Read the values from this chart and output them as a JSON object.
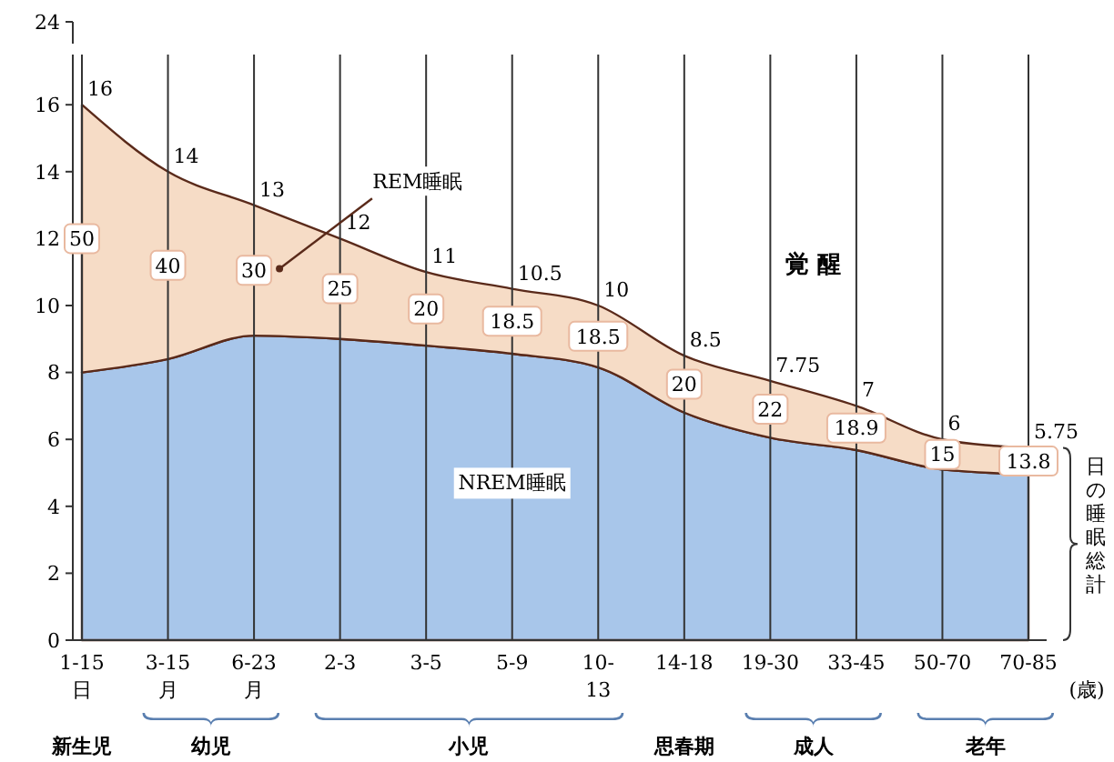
{
  "chart_data": {
    "type": "area",
    "stacked": true,
    "categories": [
      "1-15\n日",
      "3-15\n月",
      "6-23\n月",
      "2-3",
      "3-5",
      "5-9",
      "10-\n13",
      "14-18",
      "19-30",
      "33-45",
      "50-70",
      "70-85"
    ],
    "series": [
      {
        "name": "NREM睡眠",
        "color": "#a8c6ea",
        "values": [
          8,
          8.4,
          9.1,
          9,
          8.8,
          8.56,
          8.15,
          6.8,
          6.05,
          5.68,
          5.1,
          4.96
        ]
      },
      {
        "name": "REM睡眠",
        "color": "#f6dcc6",
        "values": [
          8,
          5.6,
          3.9,
          3,
          2.2,
          1.94,
          1.85,
          1.7,
          1.7,
          1.32,
          0.9,
          0.79
        ]
      }
    ],
    "totals": [
      "16",
      "14",
      "13",
      "12",
      "11",
      "10.5",
      "10",
      "8.5",
      "7.75",
      "7",
      "6",
      "5.75"
    ],
    "ylim": [
      0,
      17.5
    ],
    "yticks": [
      0,
      2,
      4,
      6,
      8,
      10,
      12,
      14,
      16
    ],
    "grid": "x",
    "annotations": [
      "覚 醒",
      "24",
      "日の睡眠総計",
      "(歳)",
      "新生児",
      "幼児",
      "小児",
      "思春期",
      "成人",
      "老年",
      {
        "text": "50",
        "x": "1-15\n日",
        "y": 12
      },
      {
        "text": "40",
        "x": "3-15\n月",
        "y": 11.2
      },
      {
        "text": "30",
        "x": "6-23\n月",
        "y": 11.05
      },
      {
        "text": "25",
        "x": "2-3",
        "y": 10.5
      },
      {
        "text": "20",
        "x": "3-5",
        "y": 9.9
      },
      {
        "text": "18.5",
        "x": "5-9",
        "y": 9.53
      },
      {
        "text": "18.5",
        "x": "10-\n13",
        "y": 9.08
      },
      {
        "text": "20",
        "x": "14-18",
        "y": 7.65
      },
      {
        "text": "22",
        "x": "19-30",
        "y": 6.9
      },
      {
        "text": "18.9",
        "x": "33-45",
        "y": 6.34
      },
      {
        "text": "15",
        "x": "50-70",
        "y": 5.55
      },
      {
        "text": "13.8",
        "x": "70-85",
        "y": 5.35
      }
    ]
  }
}
